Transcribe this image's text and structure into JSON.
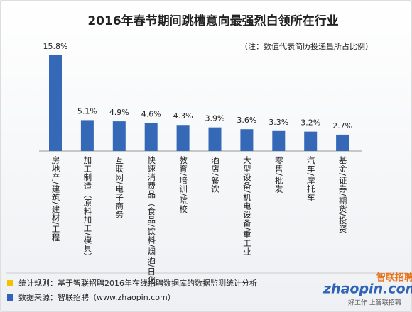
{
  "chart_data": {
    "type": "bar",
    "title": "2016年春节期间跳槽意向最强烈白领所在行业",
    "subtitle": "（注：数值代表简历投递量所占比例）",
    "categories": [
      "房地产/建筑/建材/工程",
      "加工制造（原料加工/模具）",
      "互联网/电子商务",
      "快速消费品（食品/饮料/烟酒/日化）",
      "教育/培训/院校",
      "酒店/餐饮",
      "大型设备/机电设备/重工业",
      "零售/批发",
      "汽车/摩托车",
      "基金/证券/期货/投资"
    ],
    "values": [
      15.8,
      5.1,
      4.9,
      4.6,
      4.3,
      3.9,
      3.6,
      3.3,
      3.2,
      2.7
    ],
    "value_labels": [
      "15.8%",
      "5.1%",
      "4.9%",
      "4.6%",
      "4.3%",
      "3.9%",
      "3.6%",
      "3.3%",
      "3.2%",
      "2.7%"
    ],
    "color": "#3569b8",
    "footer": {
      "rule": "统计规则：基于智联招聘2016年在线招聘数据库的数据监测统计分析",
      "rule_color": "#f2c200",
      "source": "数据来源：智联招聘（www.zhaopin.com）",
      "source_color": "#2f63b5"
    },
    "logo": {
      "site": "zhaopin.com",
      "brand": "智联招聘",
      "slogan": "好工作 上智联招聘"
    }
  }
}
